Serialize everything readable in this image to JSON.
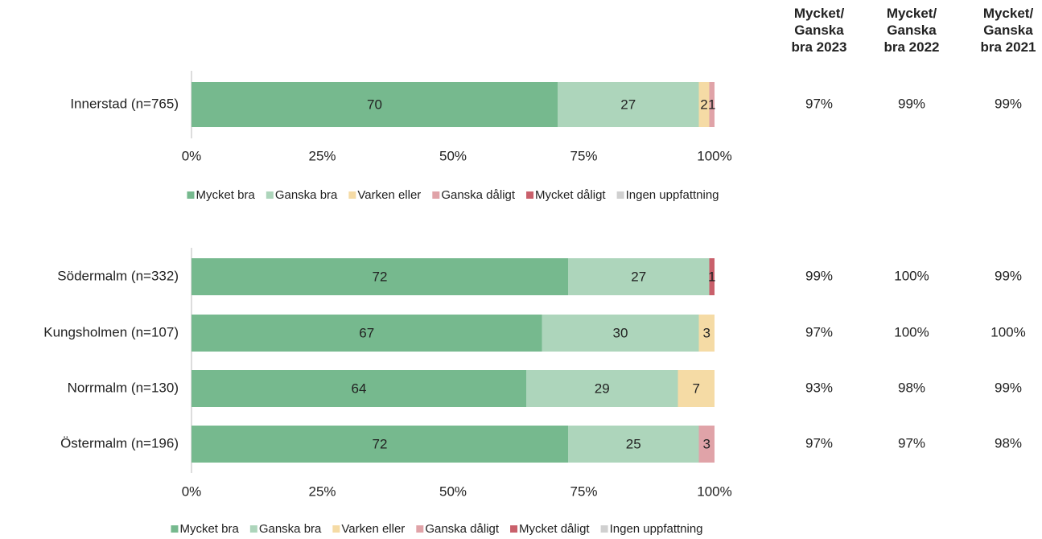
{
  "chart_data": [
    {
      "type": "stacked-barh",
      "categories": [
        "Innerstad (n=765)"
      ],
      "series": [
        {
          "name": "Mycket bra",
          "color": "#76b98e",
          "values": [
            70
          ]
        },
        {
          "name": "Ganska bra",
          "color": "#add5bb",
          "values": [
            27
          ]
        },
        {
          "name": "Varken eller",
          "color": "#f5dba5",
          "values": [
            2
          ]
        },
        {
          "name": "Ganska dåligt",
          "color": "#e0a3a8",
          "values": [
            1
          ]
        },
        {
          "name": "Mycket dåligt",
          "color": "#c9606b",
          "values": [
            0
          ]
        },
        {
          "name": "Ingen uppfattning",
          "color": "#d0d0d0",
          "values": [
            0
          ]
        }
      ],
      "xlim": [
        0,
        100
      ],
      "xticks": [
        {
          "value": 0,
          "label": "0%"
        },
        {
          "value": 25,
          "label": "25%"
        },
        {
          "value": 50,
          "label": "50%"
        },
        {
          "value": 75,
          "label": "75%"
        },
        {
          "value": 100,
          "label": "100%"
        }
      ],
      "legend": "bottom",
      "table": {
        "columns": [
          "Mycket/\nGanska\nbra 2023",
          "Mycket/\nGanska\nbra 2022",
          "Mycket/\nGanska\nbra 2021"
        ],
        "rows": [
          [
            "97%",
            "99%",
            "99%"
          ]
        ]
      }
    },
    {
      "type": "stacked-barh",
      "categories": [
        "Södermalm (n=332)",
        "Kungsholmen (n=107)",
        "Norrmalm (n=130)",
        "Östermalm (n=196)"
      ],
      "series": [
        {
          "name": "Mycket bra",
          "color": "#76b98e",
          "values": [
            72,
            67,
            64,
            72
          ]
        },
        {
          "name": "Ganska bra",
          "color": "#add5bb",
          "values": [
            27,
            30,
            29,
            25
          ]
        },
        {
          "name": "Varken eller",
          "color": "#f5dba5",
          "values": [
            0,
            3,
            7,
            0
          ]
        },
        {
          "name": "Ganska dåligt",
          "color": "#e0a3a8",
          "values": [
            0,
            0,
            0,
            3
          ]
        },
        {
          "name": "Mycket dåligt",
          "color": "#c9606b",
          "values": [
            1,
            0,
            0,
            0
          ]
        },
        {
          "name": "Ingen uppfattning",
          "color": "#d0d0d0",
          "values": [
            0,
            0,
            0,
            0
          ]
        }
      ],
      "xlim": [
        0,
        100
      ],
      "xticks": [
        {
          "value": 0,
          "label": "0%"
        },
        {
          "value": 25,
          "label": "25%"
        },
        {
          "value": 50,
          "label": "50%"
        },
        {
          "value": 75,
          "label": "75%"
        },
        {
          "value": 100,
          "label": "100%"
        }
      ],
      "legend": "bottom",
      "table": {
        "rows": [
          [
            "99%",
            "100%",
            "99%"
          ],
          [
            "97%",
            "100%",
            "100%"
          ],
          [
            "93%",
            "98%",
            "99%"
          ],
          [
            "97%",
            "97%",
            "98%"
          ]
        ]
      }
    }
  ]
}
